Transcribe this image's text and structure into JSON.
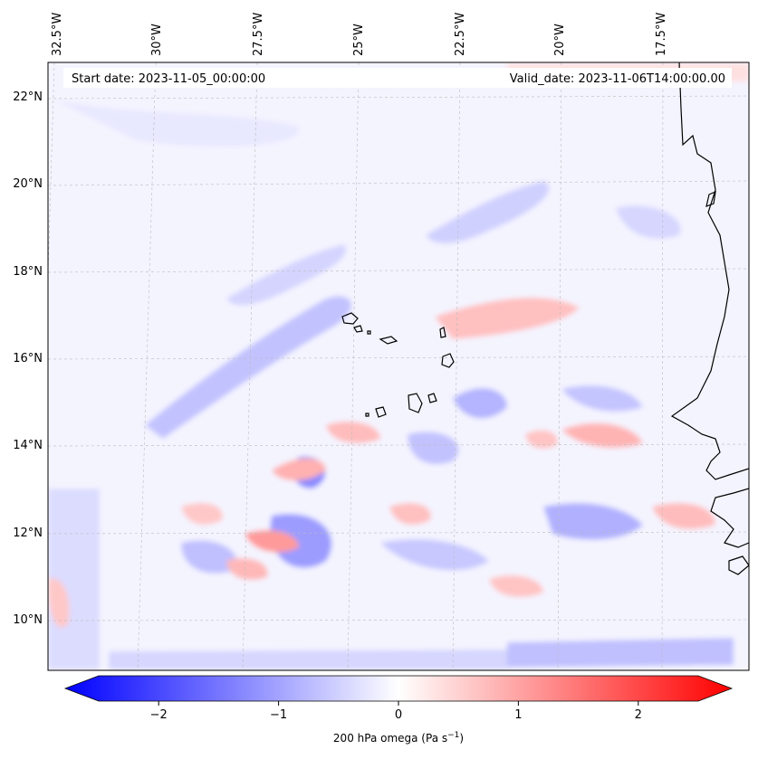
{
  "map": {
    "start_label": "Start date: 2023-11-05_00:00:00",
    "valid_label": "Valid_date: 2023-11-06T14:00:00.00",
    "variable": "200 hPa omega (Pa s",
    "units_superscript": "−1",
    "units_close": ")",
    "lon_ticks": [
      "32.5°W",
      "30°W",
      "27.5°W",
      "25°W",
      "22.5°W",
      "20°W",
      "17.5°W"
    ],
    "lat_ticks": [
      "22°N",
      "20°N",
      "18°N",
      "16°N",
      "14°N",
      "12°N",
      "10°N"
    ],
    "colorbar_ticks": [
      "−2",
      "−1",
      "0",
      "1",
      "2"
    ],
    "colorbar_values": [
      -2,
      -1,
      0,
      1,
      2
    ],
    "colorbar_range": [
      -2.5,
      2.5
    ],
    "colormap": "bwr",
    "colors": {
      "negative": "#0000ff",
      "zero": "#ffffff",
      "positive": "#ff0000",
      "coastline": "#000000",
      "gridline": "#bbbbbb"
    }
  }
}
